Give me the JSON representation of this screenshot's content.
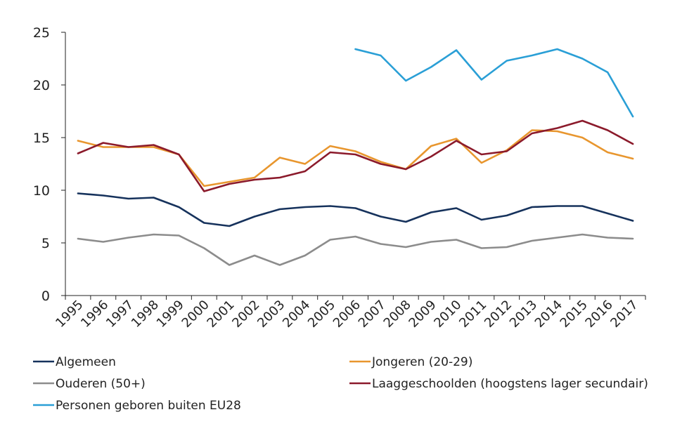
{
  "chart_data": {
    "type": "line",
    "title": "",
    "xlabel": "",
    "ylabel": "",
    "ylim": [
      0,
      25
    ],
    "yticks": [
      0,
      5,
      10,
      15,
      20,
      25
    ],
    "grid": false,
    "legend_position": "bottom",
    "categories": [
      "1995",
      "1996",
      "1997",
      "1998",
      "1999",
      "2000",
      "2001",
      "2002",
      "2003",
      "2004",
      "2005",
      "2006",
      "2007",
      "2008",
      "2009",
      "2010",
      "2011",
      "2012",
      "2013",
      "2014",
      "2015",
      "2016",
      "2017"
    ],
    "series": [
      {
        "name": "Algemeen",
        "color": "#16325c",
        "values": [
          9.7,
          9.5,
          9.2,
          9.3,
          8.4,
          6.9,
          6.6,
          7.5,
          8.2,
          8.4,
          8.5,
          8.3,
          7.5,
          7.0,
          7.9,
          8.3,
          7.2,
          7.6,
          8.4,
          8.5,
          8.5,
          7.8,
          7.1
        ]
      },
      {
        "name": "Jongeren (20-29)",
        "color": "#e8962e",
        "values": [
          14.7,
          14.1,
          14.1,
          14.1,
          13.4,
          10.4,
          10.8,
          11.2,
          13.1,
          12.5,
          14.2,
          13.7,
          12.7,
          12.0,
          14.2,
          14.9,
          12.6,
          13.8,
          15.7,
          15.6,
          15.0,
          13.6,
          13.0
        ]
      },
      {
        "name": "Ouderen (50+)",
        "color": "#8c8c8c",
        "values": [
          5.4,
          5.1,
          5.5,
          5.8,
          5.7,
          4.5,
          2.9,
          3.8,
          2.9,
          3.8,
          5.3,
          5.6,
          4.9,
          4.6,
          5.1,
          5.3,
          4.5,
          4.6,
          5.2,
          5.5,
          5.8,
          5.5,
          5.4
        ]
      },
      {
        "name": "Laaggeschoolden (hoogstens lager secundair)",
        "color": "#8b1a2b",
        "values": [
          13.5,
          14.5,
          14.1,
          14.3,
          13.4,
          9.9,
          10.6,
          11.0,
          11.2,
          11.8,
          13.6,
          13.4,
          12.5,
          12.0,
          13.2,
          14.7,
          13.4,
          13.7,
          15.4,
          15.9,
          16.6,
          15.7,
          14.4
        ]
      },
      {
        "name": "Personen geboren buiten EU28",
        "color": "#2a9fd6",
        "values": [
          null,
          null,
          null,
          null,
          null,
          null,
          null,
          null,
          null,
          null,
          null,
          23.4,
          22.8,
          20.4,
          21.7,
          23.3,
          20.5,
          22.3,
          22.8,
          23.4,
          22.5,
          21.2,
          17.0
        ]
      }
    ]
  }
}
